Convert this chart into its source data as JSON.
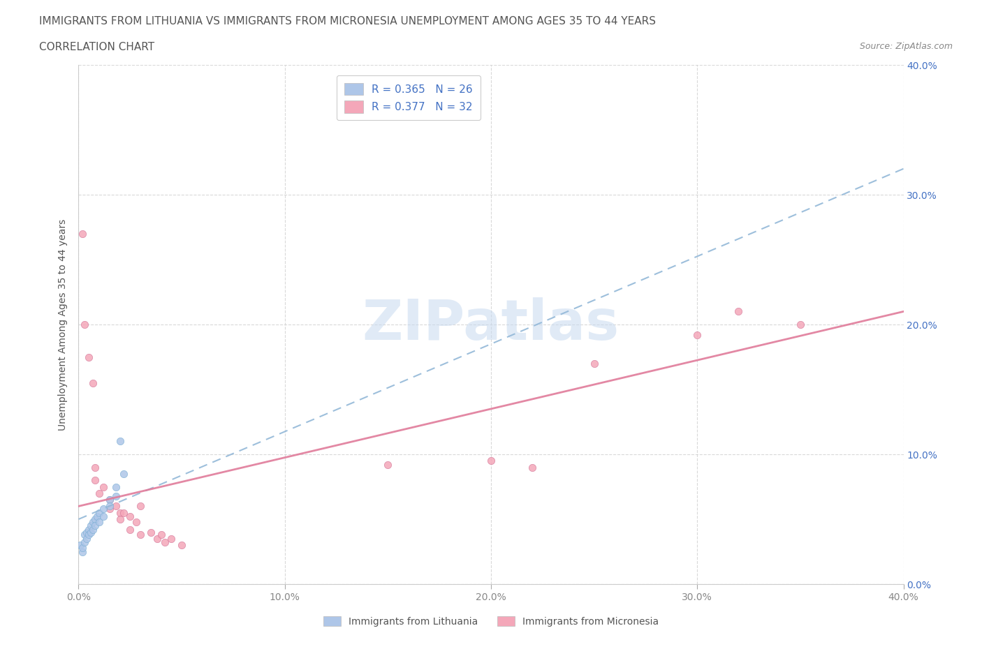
{
  "title_line1": "IMMIGRANTS FROM LITHUANIA VS IMMIGRANTS FROM MICRONESIA UNEMPLOYMENT AMONG AGES 35 TO 44 YEARS",
  "title_line2": "CORRELATION CHART",
  "source_text": "Source: ZipAtlas.com",
  "ylabel": "Unemployment Among Ages 35 to 44 years",
  "xlim": [
    0.0,
    0.4
  ],
  "ylim": [
    0.0,
    0.4
  ],
  "xticks": [
    0.0,
    0.1,
    0.2,
    0.3,
    0.4
  ],
  "yticks": [
    0.0,
    0.1,
    0.2,
    0.3,
    0.4
  ],
  "xticklabels": [
    "0.0%",
    "10.0%",
    "20.0%",
    "30.0%",
    "40.0%"
  ],
  "right_ytick_labels": [
    "0.0%",
    "10.0%",
    "20.0%",
    "30.0%",
    "40.0%"
  ],
  "legend_entries": [
    {
      "label": "R = 0.365   N = 26",
      "color": "#aec6e8"
    },
    {
      "label": "R = 0.377   N = 32",
      "color": "#f4a7b9"
    }
  ],
  "lithuania_scatter": [
    [
      0.001,
      0.03
    ],
    [
      0.002,
      0.025
    ],
    [
      0.002,
      0.028
    ],
    [
      0.003,
      0.032
    ],
    [
      0.003,
      0.038
    ],
    [
      0.004,
      0.035
    ],
    [
      0.004,
      0.04
    ],
    [
      0.005,
      0.042
    ],
    [
      0.005,
      0.038
    ],
    [
      0.006,
      0.045
    ],
    [
      0.006,
      0.04
    ],
    [
      0.007,
      0.048
    ],
    [
      0.007,
      0.042
    ],
    [
      0.008,
      0.05
    ],
    [
      0.008,
      0.045
    ],
    [
      0.009,
      0.052
    ],
    [
      0.01,
      0.055
    ],
    [
      0.01,
      0.048
    ],
    [
      0.012,
      0.058
    ],
    [
      0.012,
      0.052
    ],
    [
      0.015,
      0.065
    ],
    [
      0.015,
      0.06
    ],
    [
      0.018,
      0.075
    ],
    [
      0.018,
      0.068
    ],
    [
      0.02,
      0.11
    ],
    [
      0.022,
      0.085
    ]
  ],
  "micronesia_scatter": [
    [
      0.002,
      0.27
    ],
    [
      0.003,
      0.2
    ],
    [
      0.005,
      0.175
    ],
    [
      0.007,
      0.155
    ],
    [
      0.008,
      0.09
    ],
    [
      0.008,
      0.08
    ],
    [
      0.01,
      0.07
    ],
    [
      0.012,
      0.075
    ],
    [
      0.015,
      0.065
    ],
    [
      0.015,
      0.058
    ],
    [
      0.018,
      0.06
    ],
    [
      0.02,
      0.055
    ],
    [
      0.02,
      0.05
    ],
    [
      0.022,
      0.055
    ],
    [
      0.025,
      0.052
    ],
    [
      0.025,
      0.042
    ],
    [
      0.028,
      0.048
    ],
    [
      0.03,
      0.06
    ],
    [
      0.03,
      0.038
    ],
    [
      0.035,
      0.04
    ],
    [
      0.038,
      0.035
    ],
    [
      0.04,
      0.038
    ],
    [
      0.042,
      0.032
    ],
    [
      0.045,
      0.035
    ],
    [
      0.05,
      0.03
    ],
    [
      0.15,
      0.092
    ],
    [
      0.2,
      0.095
    ],
    [
      0.22,
      0.09
    ],
    [
      0.25,
      0.17
    ],
    [
      0.3,
      0.192
    ],
    [
      0.32,
      0.21
    ],
    [
      0.35,
      0.2
    ]
  ],
  "lithuania_color": "#aec6e8",
  "micronesia_color": "#f4a7b9",
  "lithuania_line_color": "#93b8d8",
  "micronesia_line_color": "#e07b9a",
  "lithuania_edge_color": "#7bafd4",
  "micronesia_edge_color": "#d4789a",
  "watermark_text": "ZIPatlas",
  "watermark_color": "#c8daf0",
  "background_color": "#ffffff",
  "grid_color": "#d0d0d0",
  "title_color": "#555555",
  "axis_label_color": "#555555",
  "tick_color": "#888888",
  "right_tick_color": "#4472c4",
  "legend_text_color": "#4472c4",
  "source_color": "#888888",
  "bottom_legend": [
    {
      "label": "Immigrants from Lithuania",
      "color": "#aec6e8"
    },
    {
      "label": "Immigrants from Micronesia",
      "color": "#f4a7b9"
    }
  ]
}
